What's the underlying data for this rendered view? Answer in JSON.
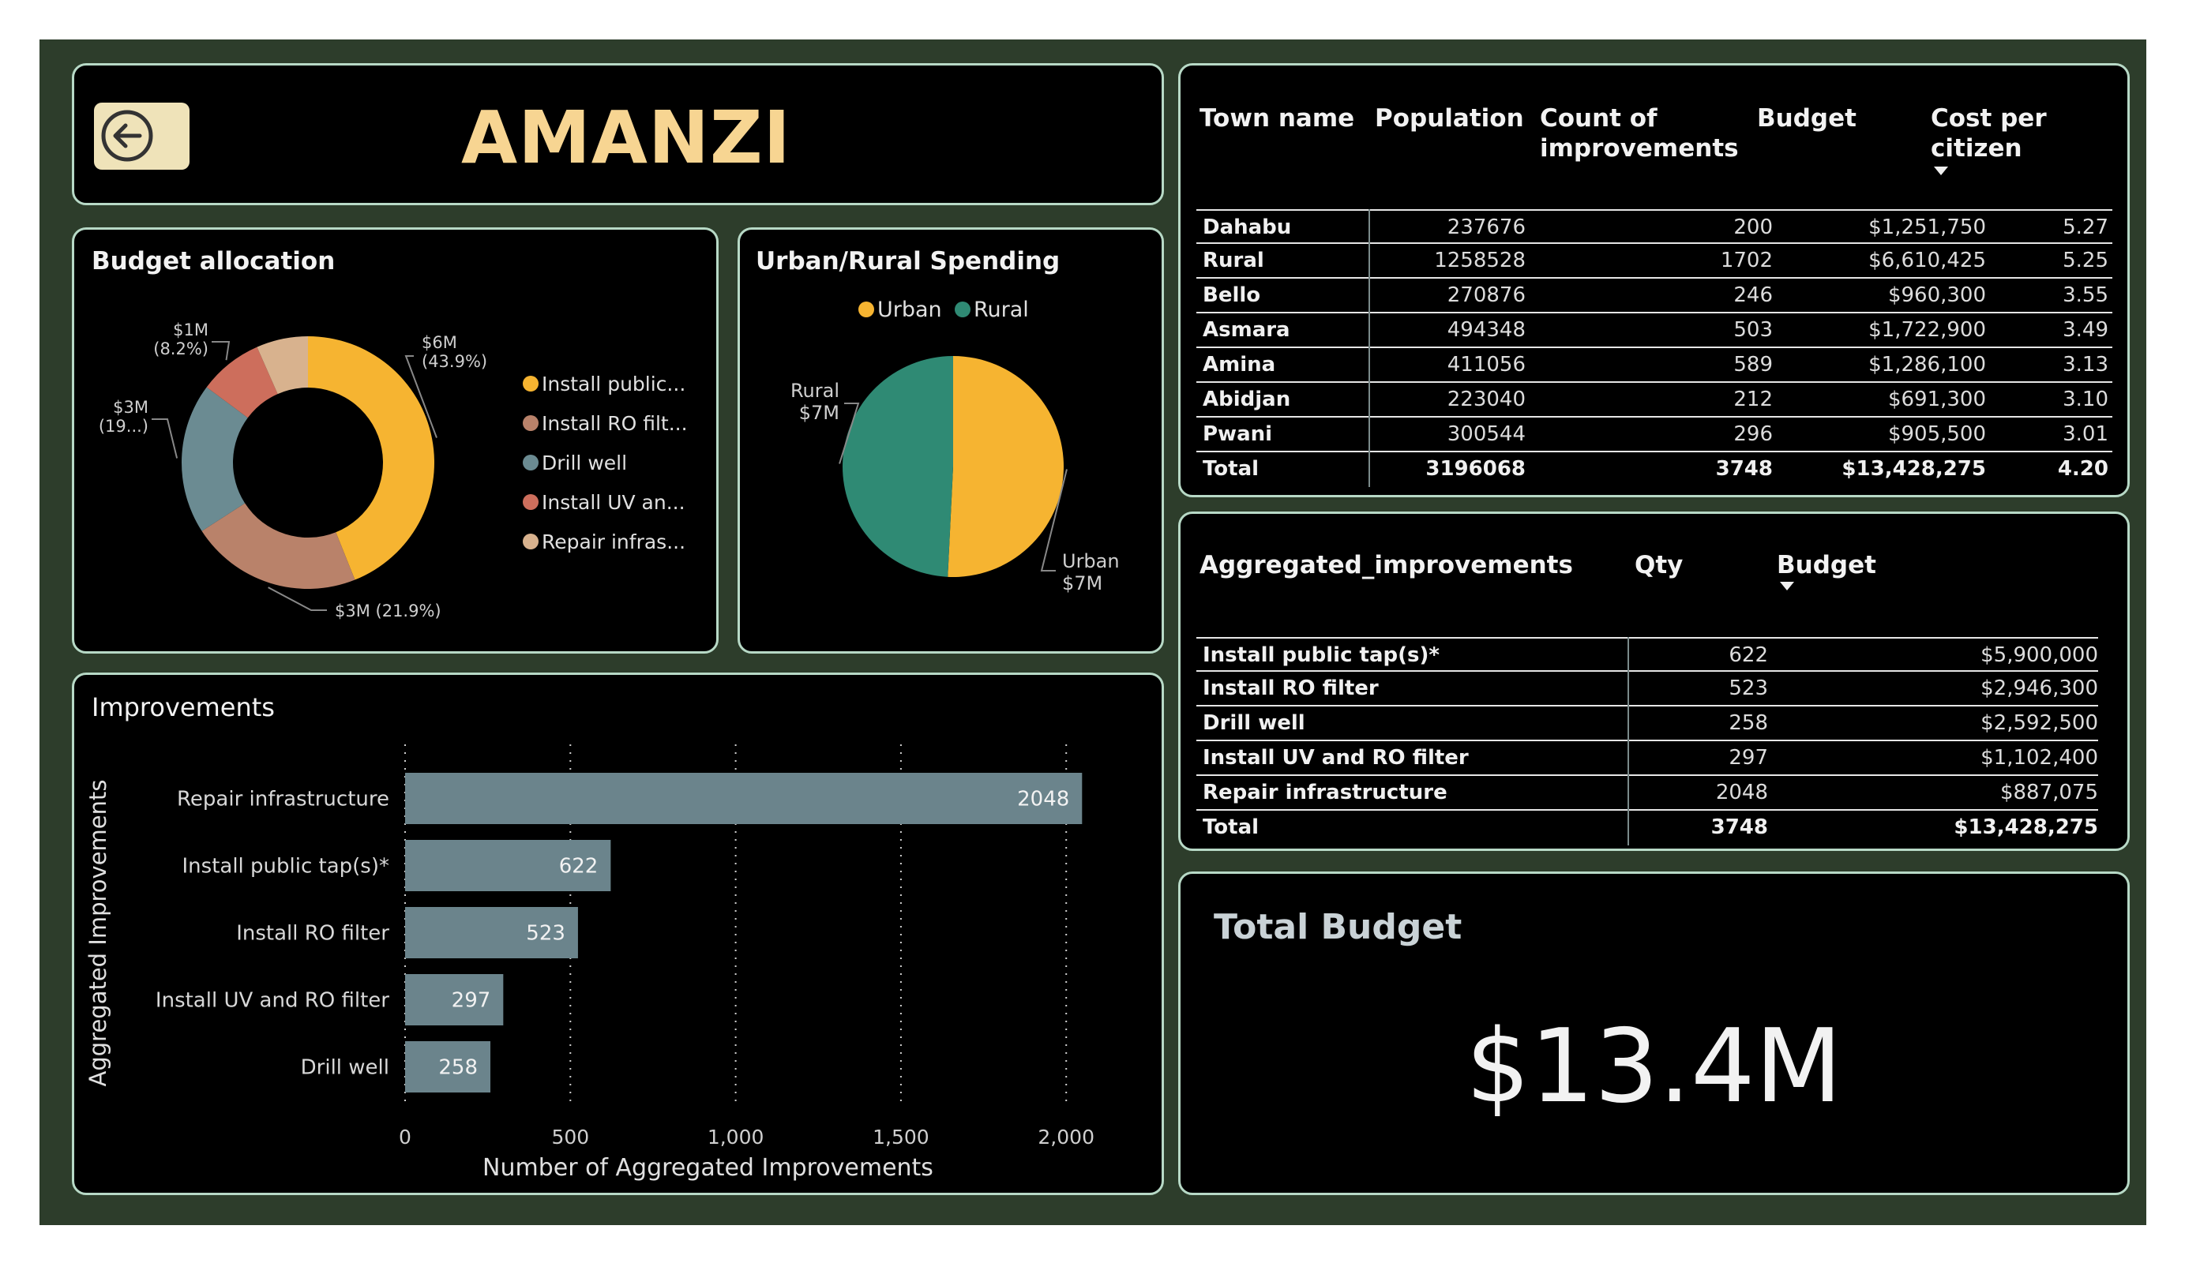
{
  "header": {
    "title": "AMANZI",
    "back_icon": "arrow-left-circle-icon"
  },
  "budget_allocation": {
    "title": "Budget allocation",
    "legend": [
      "Install public...",
      "Install RO filt...",
      "Drill well",
      "Install UV an...",
      "Repair infras..."
    ],
    "slice_labels": [
      "$6M\n(43.9%)",
      "$3M (21.9%)",
      "$3M\n(19...)",
      "$1M\n(8.2%)",
      ""
    ],
    "colors": [
      "#f6b431",
      "#b9826a",
      "#6b8b92",
      "#cd6e5c",
      "#d8b28e"
    ]
  },
  "urban_rural": {
    "title": "Urban/Rural Spending",
    "legend": [
      "Urban",
      "Rural"
    ],
    "labels": [
      "Urban\n$7M",
      "Rural\n$7M"
    ],
    "colors": [
      "#f6b431",
      "#2f8a74"
    ]
  },
  "improvements_chart": {
    "title": "Improvements",
    "colors": {
      "bar": "#6b848c"
    }
  },
  "town_table": {
    "headers": [
      "Town name",
      "Population",
      "Count of\nimprovements",
      "Budget",
      "Cost per\ncitizen"
    ],
    "rows": [
      [
        "Dahabu",
        "237676",
        "200",
        "$1,251,750",
        "5.27"
      ],
      [
        "Rural",
        "1258528",
        "1702",
        "$6,610,425",
        "5.25"
      ],
      [
        "Bello",
        "270876",
        "246",
        "$960,300",
        "3.55"
      ],
      [
        "Asmara",
        "494348",
        "503",
        "$1,722,900",
        "3.49"
      ],
      [
        "Amina",
        "411056",
        "589",
        "$1,286,100",
        "3.13"
      ],
      [
        "Abidjan",
        "223040",
        "212",
        "$691,300",
        "3.10"
      ],
      [
        "Pwani",
        "300544",
        "296",
        "$905,500",
        "3.01"
      ]
    ],
    "total": [
      "Total",
      "3196068",
      "3748",
      "$13,428,275",
      "4.20"
    ]
  },
  "agg_table": {
    "headers": [
      "Aggregated_improvements",
      "Qty",
      "Budget"
    ],
    "rows": [
      [
        "Install public tap(s)*",
        "622",
        "$5,900,000"
      ],
      [
        "Install RO filter",
        "523",
        "$2,946,300"
      ],
      [
        "Drill well",
        "258",
        "$2,592,500"
      ],
      [
        "Install UV and RO filter",
        "297",
        "$1,102,400"
      ],
      [
        "Repair infrastructure",
        "2048",
        "$887,075"
      ]
    ],
    "total": [
      "Total",
      "3748",
      "$13,428,275"
    ]
  },
  "total_budget": {
    "title": "Total Budget",
    "value": "$13.4M"
  },
  "chart_data": [
    {
      "type": "pie",
      "title": "Budget allocation",
      "categories": [
        "Install public tap(s)*",
        "Install RO filter",
        "Drill well",
        "Install UV and RO filter",
        "Repair infrastructure"
      ],
      "values": [
        5900000,
        2946300,
        2592500,
        1102400,
        887075
      ],
      "donut": true,
      "legend": "right"
    },
    {
      "type": "pie",
      "title": "Urban/Rural Spending",
      "categories": [
        "Urban",
        "Rural"
      ],
      "values": [
        6817850,
        6610425
      ],
      "legend": "top"
    },
    {
      "type": "bar",
      "orientation": "horizontal",
      "title": "Improvements",
      "categories": [
        "Repair infrastructure",
        "Install public tap(s)*",
        "Install RO filter",
        "Install UV and RO filter",
        "Drill well"
      ],
      "values": [
        2048,
        622,
        523,
        297,
        258
      ],
      "xlabel": "Number of Aggregated Improvements",
      "ylabel": "Aggregated Improvements",
      "xlim": [
        0,
        2150
      ],
      "xticks": [
        0,
        500,
        1000,
        1500,
        2000
      ],
      "xtick_labels": [
        "0",
        "500",
        "1,000",
        "1,500",
        "2,000"
      ],
      "grid": true
    }
  ]
}
